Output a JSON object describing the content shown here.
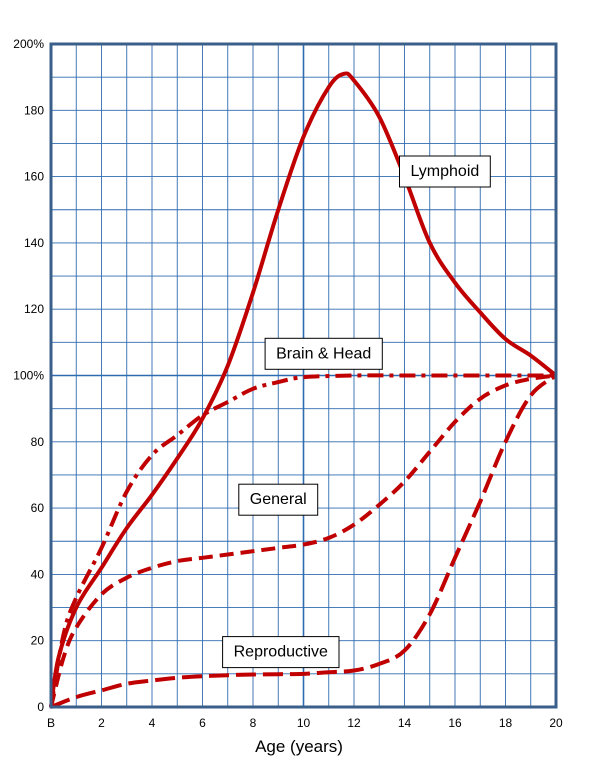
{
  "chart_data": {
    "type": "line",
    "xlabel": "Age (years)",
    "ylabel": "",
    "xlim": [
      0,
      20
    ],
    "ylim": [
      0,
      200
    ],
    "grid": true,
    "x_ticks": [
      {
        "value": 0,
        "label": "B"
      },
      {
        "value": 2,
        "label": "2"
      },
      {
        "value": 4,
        "label": "4"
      },
      {
        "value": 6,
        "label": "6"
      },
      {
        "value": 8,
        "label": "8"
      },
      {
        "value": 10,
        "label": "10"
      },
      {
        "value": 12,
        "label": "12"
      },
      {
        "value": 14,
        "label": "14"
      },
      {
        "value": 16,
        "label": "16"
      },
      {
        "value": 18,
        "label": "18"
      },
      {
        "value": 20,
        "label": "20"
      }
    ],
    "y_ticks": [
      {
        "value": 0,
        "label": "0"
      },
      {
        "value": 20,
        "label": "20"
      },
      {
        "value": 40,
        "label": "40"
      },
      {
        "value": 60,
        "label": "60"
      },
      {
        "value": 80,
        "label": "80"
      },
      {
        "value": 100,
        "label": "100%"
      },
      {
        "value": 120,
        "label": "120"
      },
      {
        "value": 140,
        "label": "140"
      },
      {
        "value": 160,
        "label": "160"
      },
      {
        "value": 180,
        "label": "180"
      },
      {
        "value": 200,
        "label": "200%"
      }
    ],
    "series": [
      {
        "name": "Lymphoid",
        "style": "solid",
        "color": "#c00000",
        "x": [
          0,
          0.3,
          1,
          2,
          3,
          4,
          5,
          6,
          7,
          8,
          9,
          10,
          11,
          11.6,
          12,
          13,
          14,
          15,
          16,
          17,
          18,
          19,
          20
        ],
        "y": [
          0,
          15,
          30,
          42,
          54,
          64,
          75,
          87,
          103,
          125,
          150,
          172,
          187,
          191,
          189,
          178,
          160,
          140,
          128,
          119,
          111,
          106,
          100
        ]
      },
      {
        "name": "Brain & Head",
        "style": "dashdot",
        "color": "#c00000",
        "x": [
          0,
          0.5,
          1,
          2,
          3,
          4,
          5,
          6,
          7,
          8,
          9,
          10,
          12,
          14,
          16,
          18,
          20
        ],
        "y": [
          0,
          22,
          33,
          48,
          65,
          76,
          82,
          88,
          92,
          96,
          98,
          99.5,
          100,
          100,
          100,
          100,
          100
        ]
      },
      {
        "name": "General",
        "style": "dashed",
        "color": "#c00000",
        "x": [
          0,
          0.5,
          1,
          2,
          3,
          4,
          5,
          6,
          7,
          8,
          9,
          10,
          11,
          12,
          13,
          14,
          15,
          16,
          17,
          18,
          19,
          20
        ],
        "y": [
          0,
          15,
          24,
          34,
          39,
          42,
          44,
          45,
          46,
          47,
          48,
          49,
          51,
          55,
          61,
          68,
          77,
          86,
          93,
          97,
          99,
          100
        ]
      },
      {
        "name": "Reproductive",
        "style": "dashed-long",
        "color": "#c00000",
        "x": [
          0,
          1,
          2,
          3,
          4,
          5,
          6,
          7,
          8,
          9,
          10,
          11,
          12,
          13,
          14,
          15,
          16,
          17,
          18,
          19,
          20
        ],
        "y": [
          0,
          3,
          5,
          7,
          8,
          8.8,
          9.3,
          9.6,
          9.8,
          9.9,
          10,
          10.5,
          11,
          13,
          17,
          28,
          45,
          62,
          80,
          94,
          100
        ]
      }
    ],
    "annotations": [
      {
        "text": "Lymphoid",
        "x": 15.6,
        "y": 162
      },
      {
        "text": "Brain & Head",
        "x": 10.8,
        "y": 107
      },
      {
        "text": "General",
        "x": 9.0,
        "y": 63
      },
      {
        "text": "Reproductive",
        "x": 9.1,
        "y": 17
      }
    ]
  }
}
